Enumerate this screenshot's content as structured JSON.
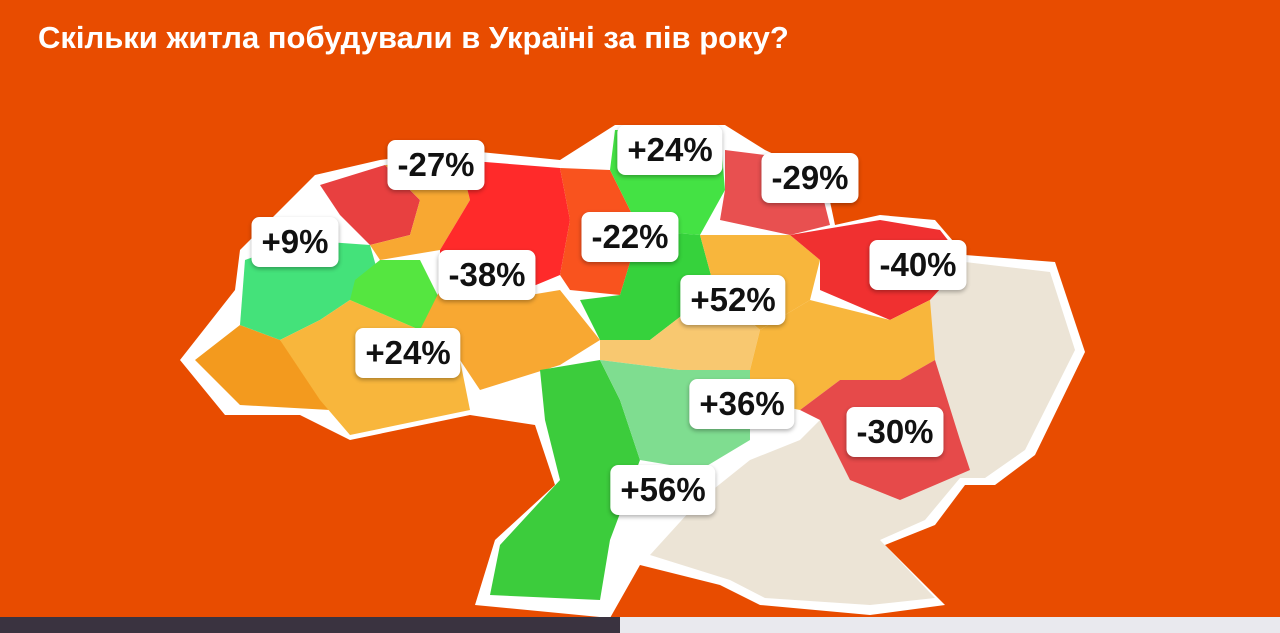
{
  "title": "Скільки житла побудували в Україні за пів року?",
  "regions": [
    {
      "label": "-27%"
    },
    {
      "label": "+24%"
    },
    {
      "label": "-29%"
    },
    {
      "label": "+9%"
    },
    {
      "label": "-22%"
    },
    {
      "label": "-40%"
    },
    {
      "label": "-38%"
    },
    {
      "label": "+52%"
    },
    {
      "label": "+24%"
    },
    {
      "label": "+36%"
    },
    {
      "label": "-30%"
    },
    {
      "label": "+56%"
    }
  ]
}
